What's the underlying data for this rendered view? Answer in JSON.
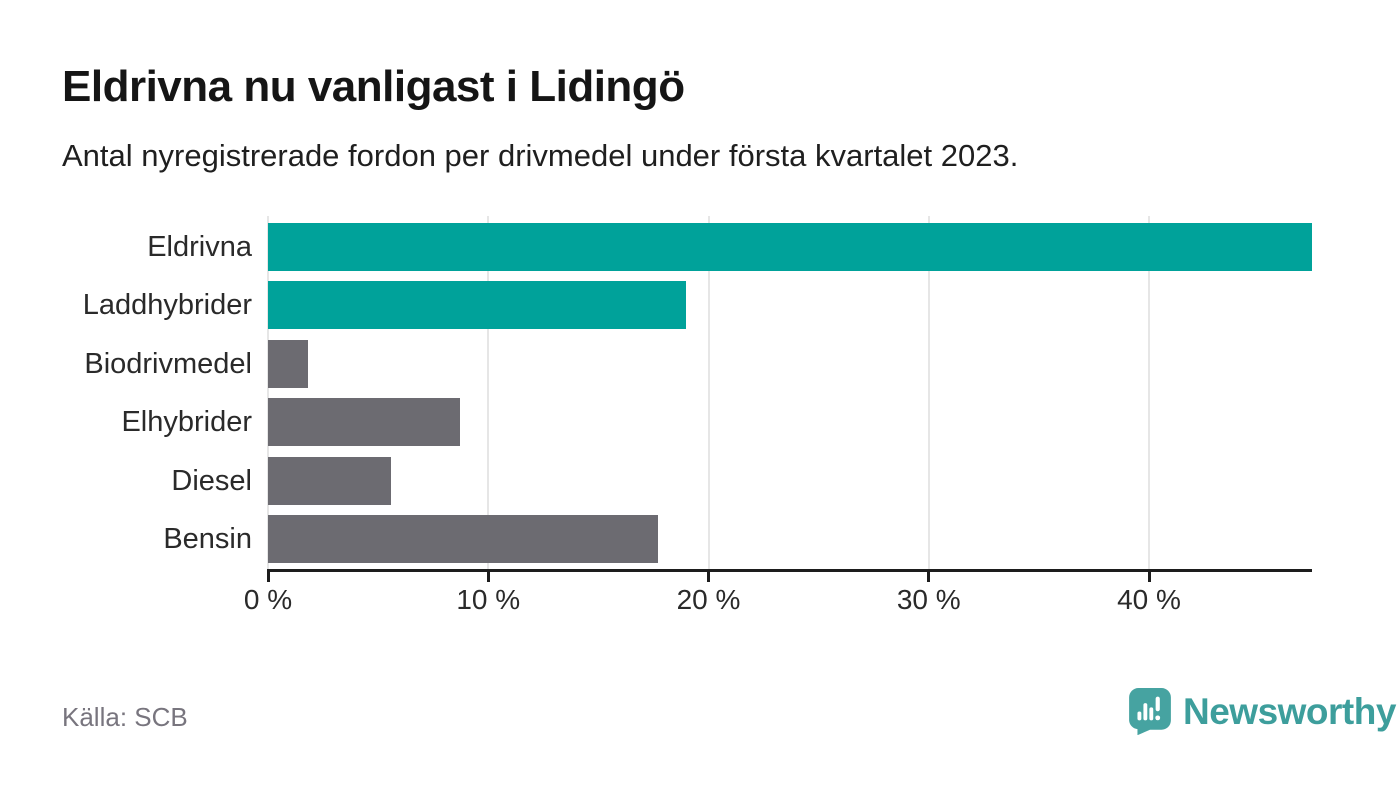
{
  "header": {
    "title": "Eldrivna nu vanligast i Lidingö",
    "subtitle": "Antal nyregistrerade fordon per drivmedel under första kvartalet 2023."
  },
  "chart_data": {
    "type": "bar",
    "orientation": "horizontal",
    "title": "Eldrivna nu vanligast i Lidingö",
    "subtitle": "Antal nyregistrerade fordon per drivmedel under första kvartalet 2023.",
    "categories": [
      "Eldrivna",
      "Laddhybrider",
      "Biodrivmedel",
      "Elhybrider",
      "Diesel",
      "Bensin"
    ],
    "values": [
      47.4,
      19.0,
      1.8,
      8.7,
      5.6,
      17.7
    ],
    "unit": "%",
    "colors": [
      "#00a29a",
      "#00a29a",
      "#6c6b71",
      "#6c6b71",
      "#6c6b71",
      "#6c6b71"
    ],
    "highlight_color": "#00a29a",
    "default_color": "#6c6b71",
    "xlim": [
      0,
      47.4
    ],
    "xticks": [
      0,
      10,
      20,
      30,
      40
    ],
    "xtick_labels": [
      "0 %",
      "10 %",
      "20 %",
      "30 %",
      "40 %"
    ],
    "grid": true,
    "legend": false,
    "gridline_color": "#e6e6e6",
    "axis_color": "#1d1d1d"
  },
  "footer": {
    "source": "Källa: SCB",
    "brand": "Newsworthy",
    "brand_color": "#3d9e9c",
    "logo_color": "#46a3a1"
  }
}
